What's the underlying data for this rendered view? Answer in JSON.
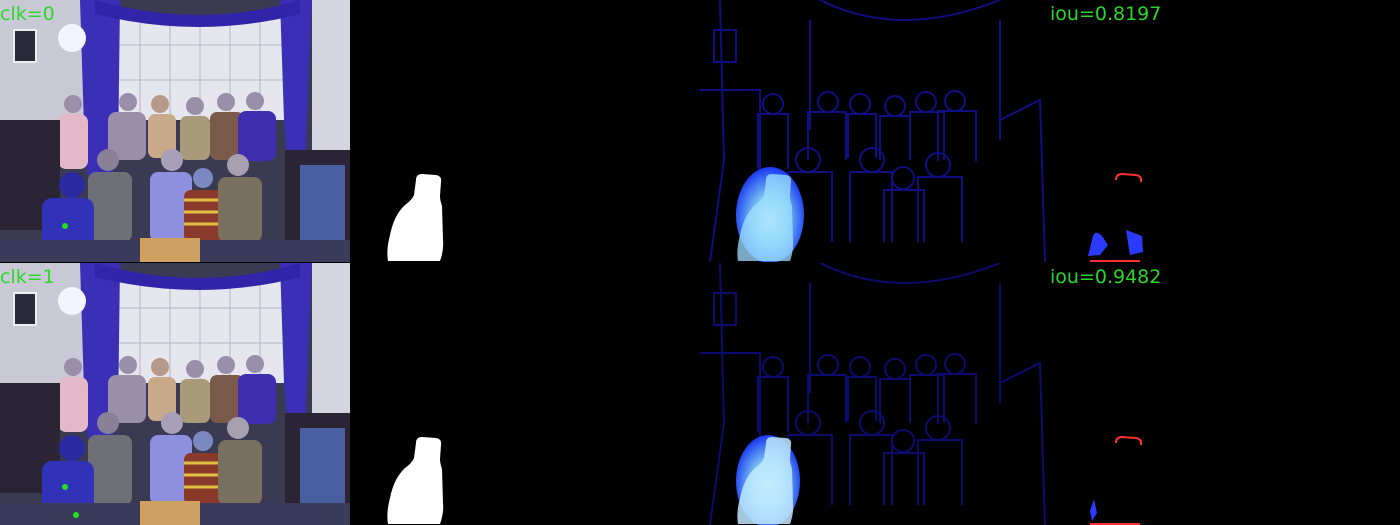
{
  "rows": [
    {
      "clicks_label": "clk=0",
      "iou_label": "iou=0.8197"
    },
    {
      "clicks_label": "clk=1",
      "iou_label": "iou=0.9482"
    }
  ],
  "colors": {
    "label_text": "#2bd62b",
    "click_point": "#22e022",
    "mask": "#ffffff",
    "heatmap_edge": "#1a1ab0",
    "heatmap_core": "#7fd3ff",
    "false_negative": "#2a3aff",
    "false_positive": "#ff3030"
  }
}
